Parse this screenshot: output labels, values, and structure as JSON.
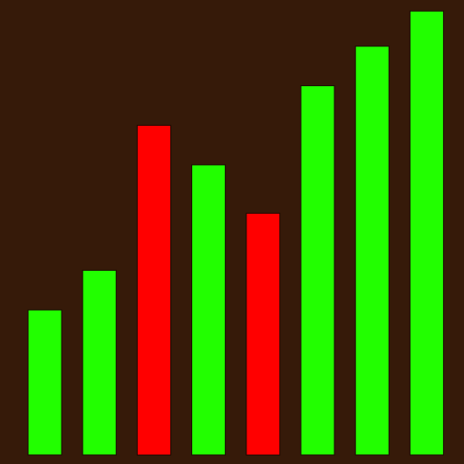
{
  "colors": {
    "background": "#361a09",
    "up": "#22ff00",
    "down": "#ff0000"
  },
  "chart_data": {
    "type": "bar",
    "title": "",
    "xlabel": "",
    "ylabel": "",
    "grid": false,
    "ylim": [
      0,
      100
    ],
    "values": [
      33,
      42,
      75,
      66,
      55,
      84,
      93,
      101
    ],
    "colors": [
      "up",
      "up",
      "down",
      "up",
      "down",
      "up",
      "up",
      "up"
    ]
  }
}
